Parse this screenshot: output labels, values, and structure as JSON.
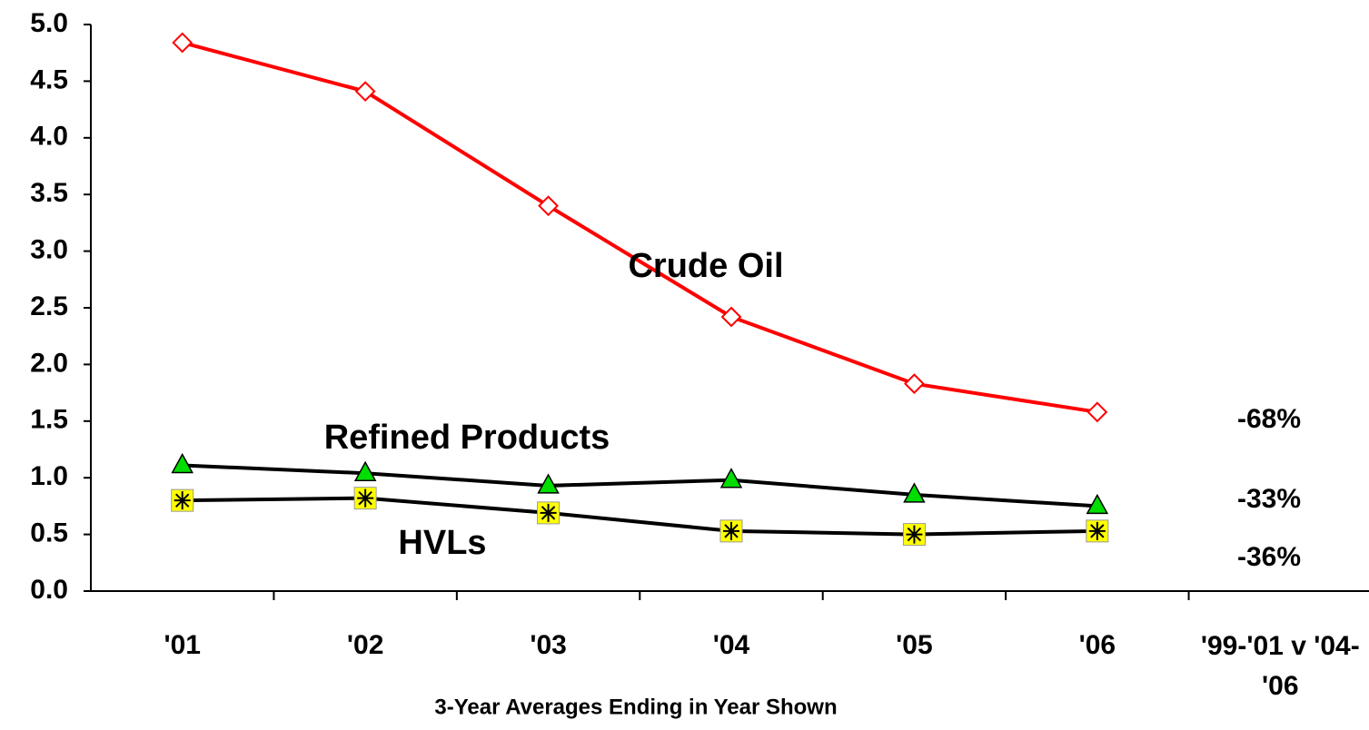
{
  "chart_data": {
    "type": "line",
    "xlabel": "3-Year Averages Ending in Year Shown",
    "categories": [
      "'01",
      "'02",
      "'03",
      "'04",
      "'05",
      "'06",
      "'99-'01 v '04-'06"
    ],
    "series": [
      {
        "name": "Crude Oil",
        "color": "#ff0000",
        "marker": "diamond",
        "values": [
          4.84,
          4.41,
          3.4,
          2.42,
          1.83,
          1.58,
          null
        ]
      },
      {
        "name": "Refined Products",
        "color": "#000000",
        "marker": "triangle",
        "values": [
          1.11,
          1.04,
          0.93,
          0.98,
          0.85,
          0.75,
          null
        ]
      },
      {
        "name": "HVLs",
        "color": "#000000",
        "marker": "square-star",
        "values": [
          0.8,
          0.82,
          0.69,
          0.53,
          0.5,
          0.53,
          null
        ]
      }
    ],
    "annotations": [
      {
        "text": "-68%"
      },
      {
        "text": "-33%"
      },
      {
        "text": "-36%"
      }
    ],
    "ylim": [
      0,
      5
    ],
    "yticks": [
      {
        "value": 0,
        "label": "0.0"
      },
      0.5,
      {
        "value": 1,
        "label": "1.0"
      },
      1.5,
      {
        "value": 2,
        "label": "2.0"
      },
      2.5,
      {
        "value": 3,
        "label": "3.0"
      },
      3.5,
      {
        "value": 4,
        "label": "4.0"
      },
      4.5,
      {
        "value": 5,
        "label": "5.0"
      }
    ],
    "grid": false
  }
}
